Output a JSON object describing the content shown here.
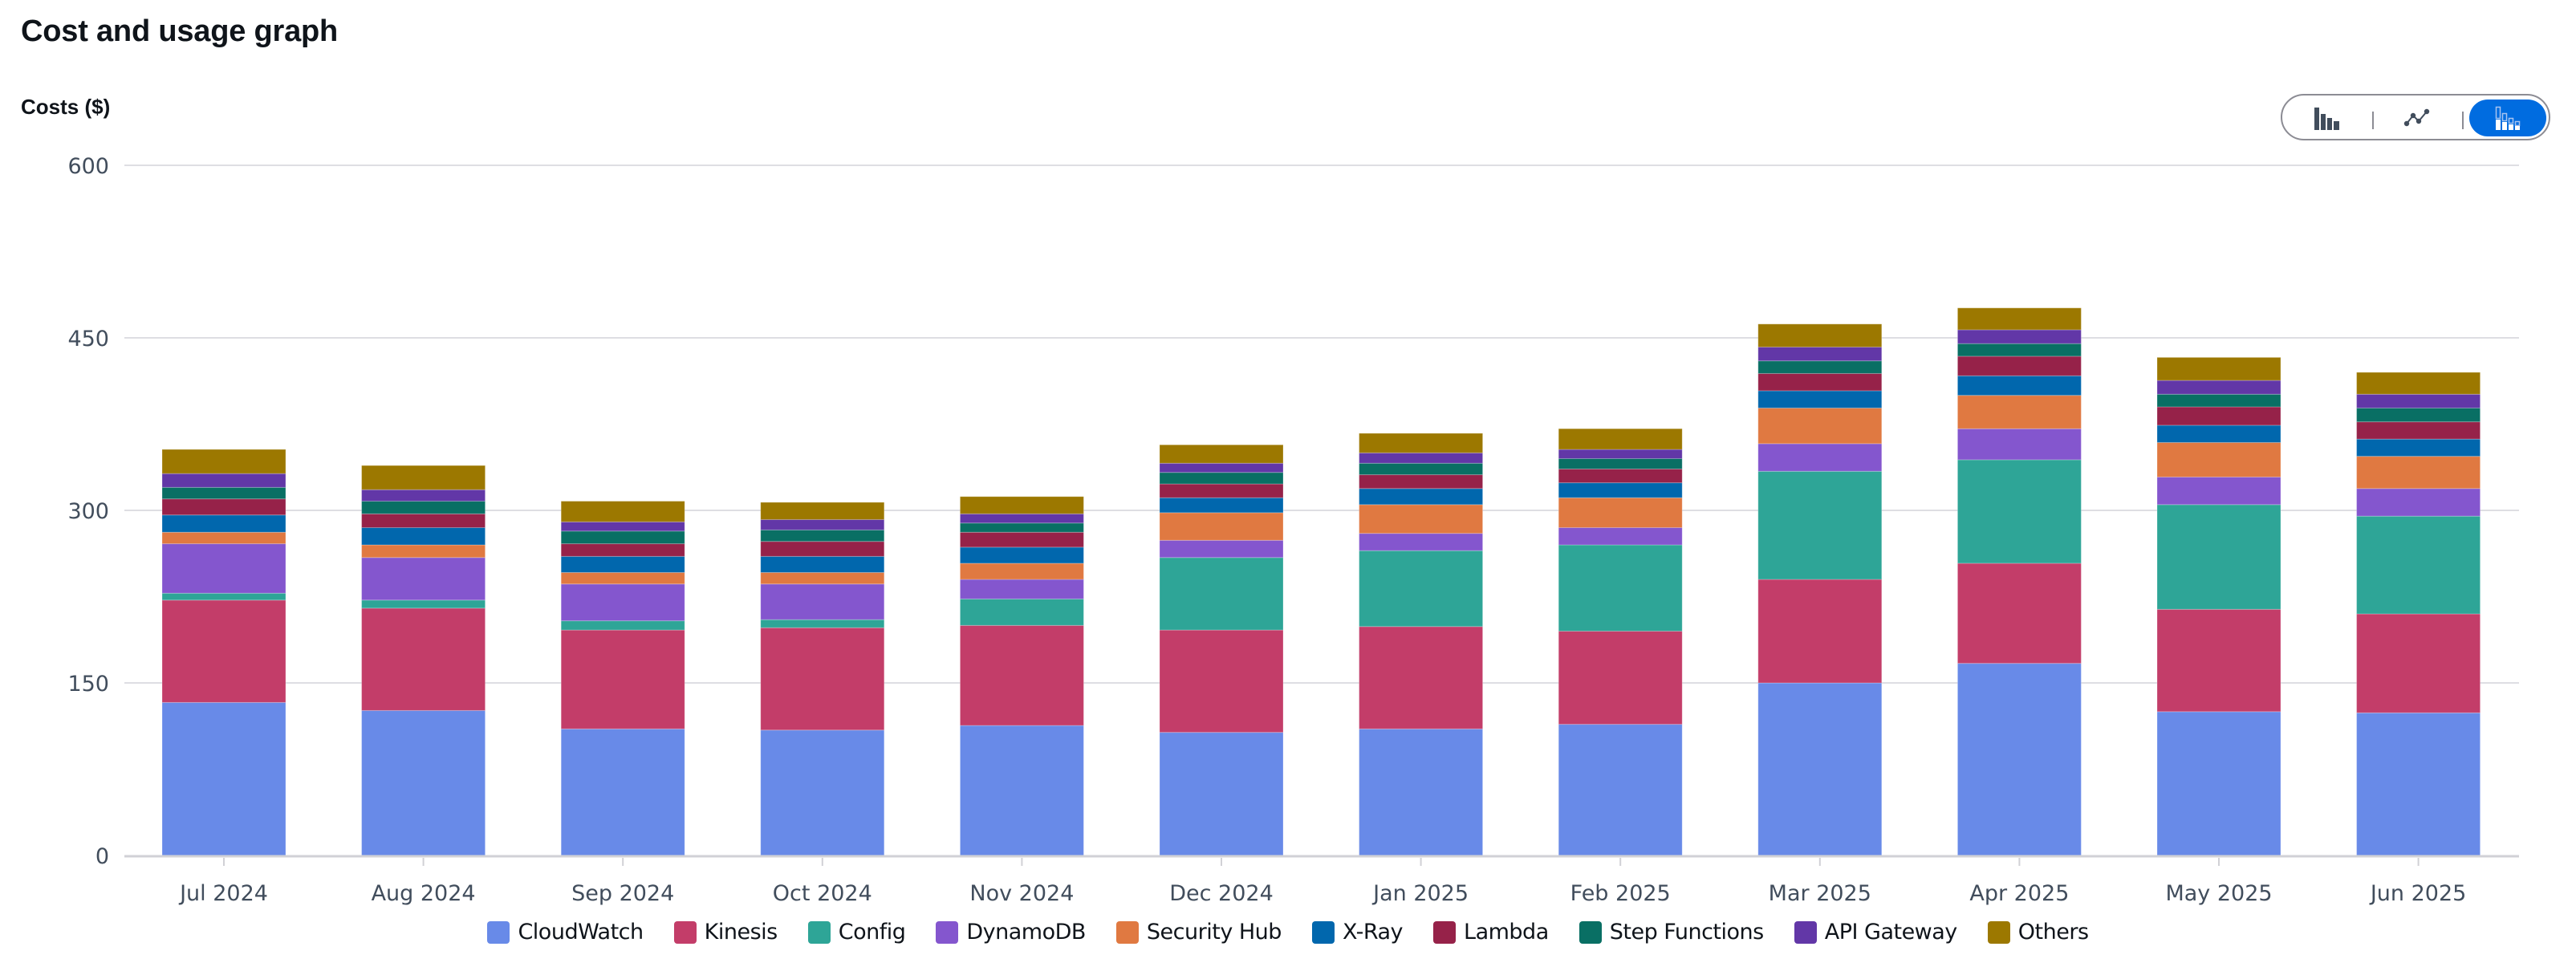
{
  "header": {
    "title": "Cost and usage graph",
    "y_axis_label": "Costs ($)"
  },
  "view_toggle": {
    "options": [
      {
        "name": "bar-chart",
        "label": "Bar chart",
        "selected": false
      },
      {
        "name": "line-chart",
        "label": "Line chart",
        "selected": false
      },
      {
        "name": "stacked-bar-chart",
        "label": "Stacked bar chart",
        "selected": true
      }
    ],
    "active_color": "#006ce0"
  },
  "chart_data": {
    "type": "bar",
    "stacked": true,
    "title": "Cost and usage graph",
    "xlabel": "",
    "ylabel": "Costs ($)",
    "ylim": [
      0,
      600
    ],
    "yticks": [
      0,
      150,
      300,
      450,
      600
    ],
    "grid": true,
    "legend_position": "bottom-center",
    "categories": [
      "Jul 2024",
      "Aug 2024",
      "Sep 2024",
      "Oct 2024",
      "Nov 2024",
      "Dec 2024",
      "Jan 2025",
      "Feb 2025",
      "Mar 2025",
      "Apr 2025",
      "May 2025",
      "Jun 2025"
    ],
    "series": [
      {
        "name": "CloudWatch",
        "color": "#688ae8",
        "values": [
          133,
          126,
          110,
          109,
          113,
          107,
          110,
          114,
          150,
          167,
          125,
          124
        ]
      },
      {
        "name": "Kinesis",
        "color": "#c33d69",
        "values": [
          89,
          89,
          86,
          89,
          87,
          89,
          89,
          81,
          90,
          87,
          89,
          86
        ]
      },
      {
        "name": "Config",
        "color": "#2ea597",
        "values": [
          6,
          7,
          8,
          7,
          23,
          63,
          66,
          75,
          94,
          90,
          91,
          85
        ]
      },
      {
        "name": "DynamoDB",
        "color": "#8456ce",
        "values": [
          43,
          37,
          32,
          31,
          17,
          15,
          15,
          15,
          24,
          27,
          24,
          24
        ]
      },
      {
        "name": "Security Hub",
        "color": "#e07941",
        "values": [
          10,
          11,
          10,
          10,
          14,
          24,
          25,
          26,
          31,
          29,
          30,
          28
        ]
      },
      {
        "name": "X-Ray",
        "color": "#0167ad",
        "values": [
          15,
          15,
          14,
          14,
          14,
          13,
          14,
          13,
          15,
          17,
          15,
          15
        ]
      },
      {
        "name": "Lambda",
        "color": "#962249",
        "values": [
          14,
          12,
          11,
          13,
          13,
          12,
          12,
          12,
          15,
          17,
          16,
          15
        ]
      },
      {
        "name": "Step Functions",
        "color": "#096f64",
        "values": [
          10,
          11,
          11,
          10,
          8,
          10,
          10,
          9,
          11,
          11,
          11,
          12
        ]
      },
      {
        "name": "API Gateway",
        "color": "#6237a7",
        "values": [
          12,
          10,
          8,
          9,
          8,
          8,
          9,
          8,
          12,
          12,
          12,
          12
        ]
      },
      {
        "name": "Others",
        "color": "#9c7800",
        "values": [
          21,
          21,
          18,
          15,
          15,
          16,
          17,
          18,
          20,
          19,
          20,
          19
        ]
      }
    ]
  }
}
